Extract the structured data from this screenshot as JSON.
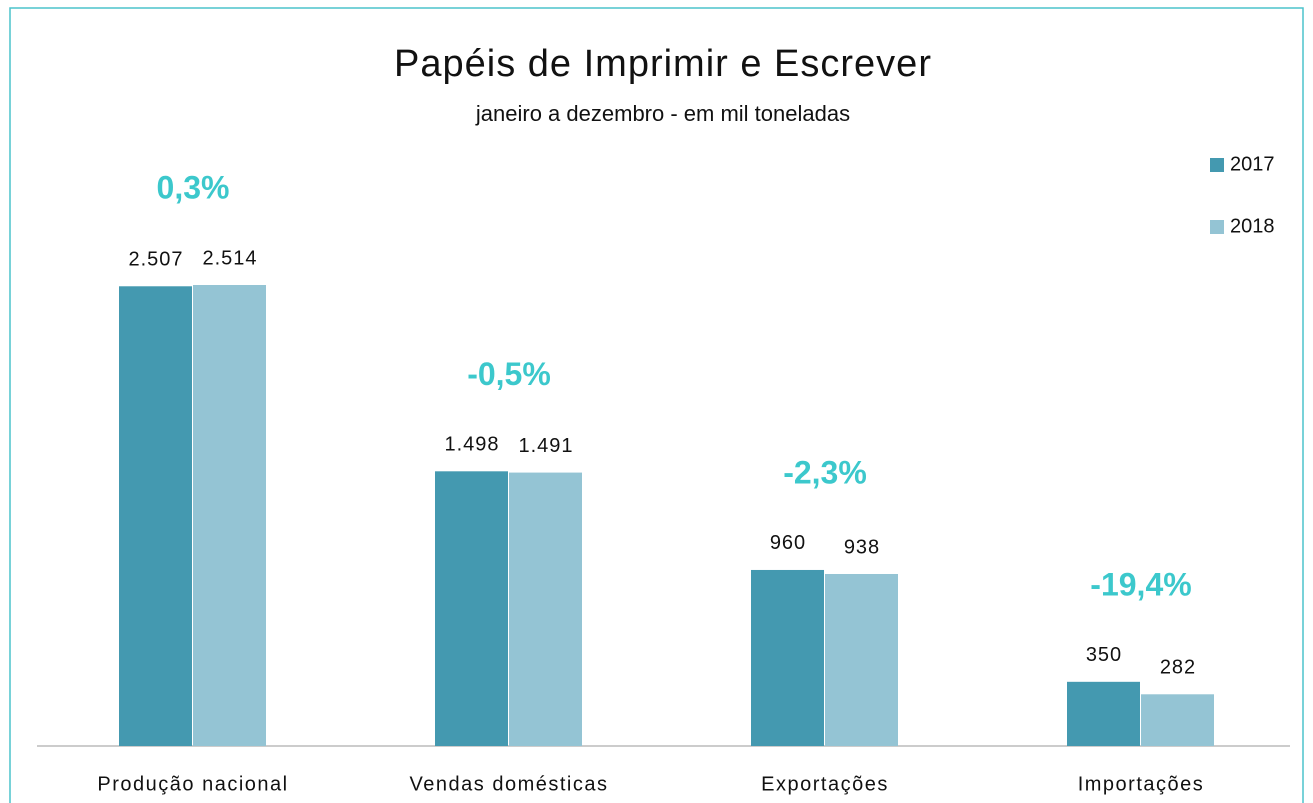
{
  "chart_data": {
    "type": "bar",
    "title": "Papéis de Imprimir e Escrever",
    "subtitle": "janeiro a dezembro -  em mil toneladas",
    "categories": [
      "Produção nacional",
      "Vendas domésticas",
      "Exportações",
      "Importações"
    ],
    "series": [
      {
        "name": "2017",
        "color": "#4499b0",
        "values": [
          2507,
          1498,
          960,
          350
        ],
        "value_labels": [
          "2.507",
          "1.498",
          "960",
          "350"
        ]
      },
      {
        "name": "2018",
        "color": "#94c4d4",
        "values": [
          2514,
          1491,
          938,
          282
        ],
        "value_labels": [
          "2.514",
          "1.491",
          "938",
          "282"
        ]
      }
    ],
    "annotations": [
      "0,3%",
      "-0,5%",
      "-2,3%",
      "-19,4%"
    ],
    "annotation_color": "#3cc8cc",
    "legend": "right"
  }
}
